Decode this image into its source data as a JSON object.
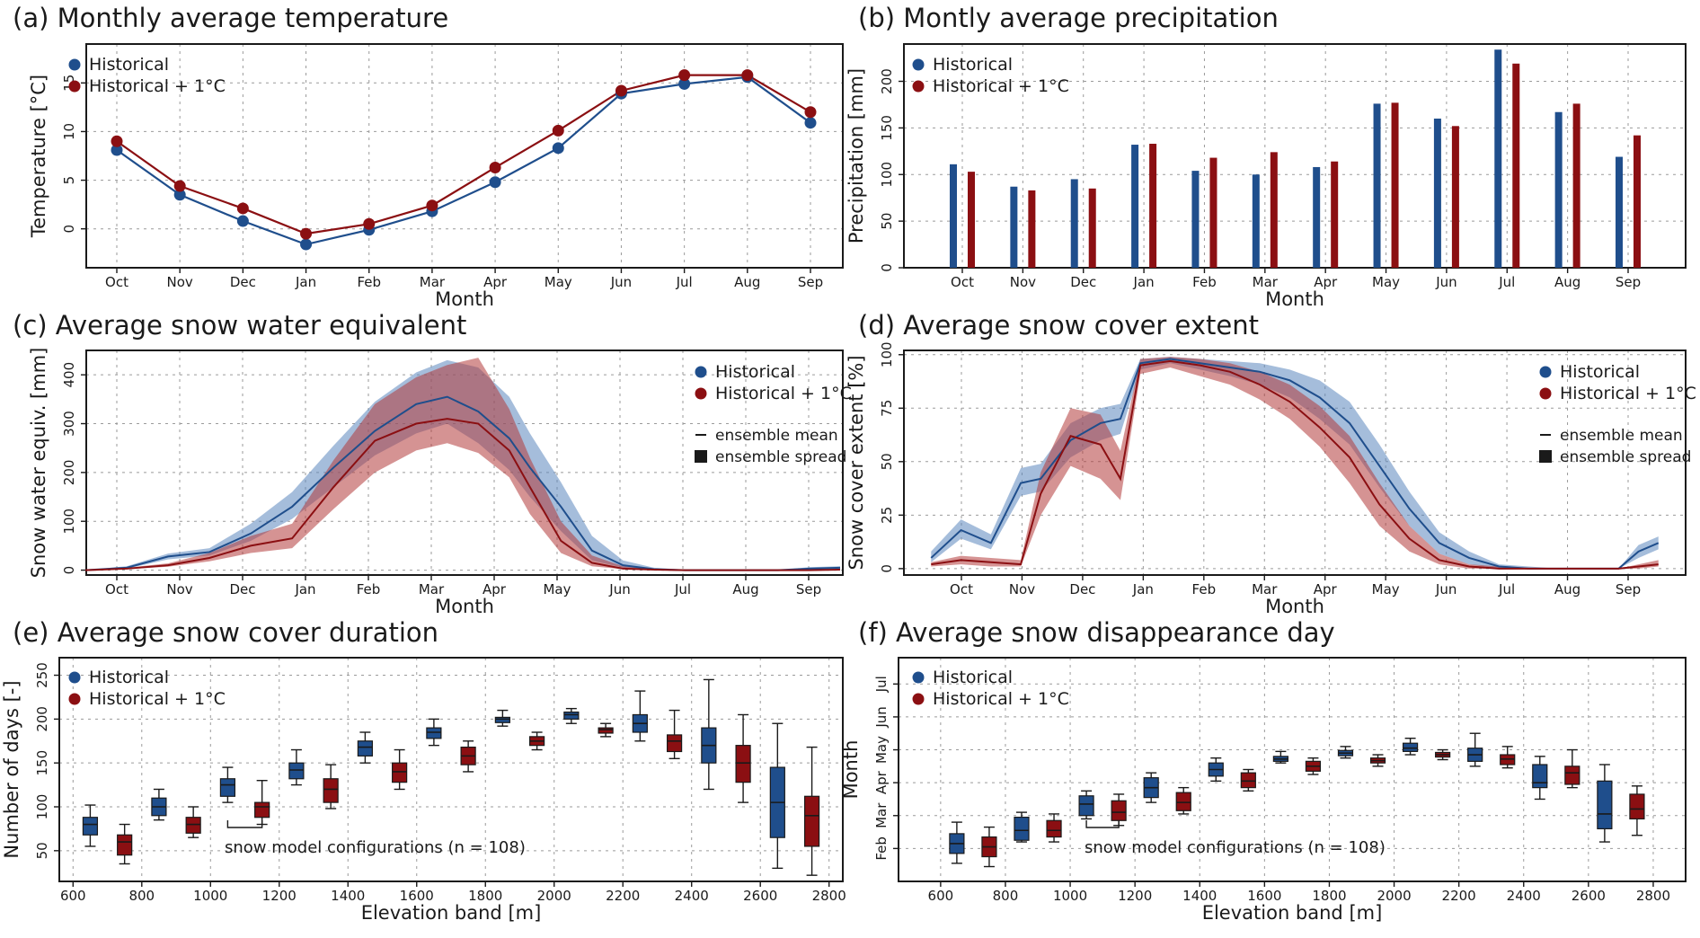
{
  "colors": {
    "historical": "#1f4e8c",
    "warm": "#8b0f12"
  },
  "chart_data": [
    {
      "type": "line",
      "title": "(a) Monthly average temperature",
      "xlabel": "Month",
      "ylabel": "Temperature [°C]",
      "categories": [
        "Oct",
        "Nov",
        "Dec",
        "Jan",
        "Feb",
        "Mar",
        "Apr",
        "May",
        "Jun",
        "Jul",
        "Aug",
        "Sep"
      ],
      "ylim": [
        -4,
        19
      ],
      "yticks": [
        "0",
        "5",
        "10",
        "15"
      ],
      "legend": [
        "Historical",
        "Historical + 1°C"
      ],
      "series": [
        {
          "name": "Historical",
          "values": [
            8.1,
            3.5,
            0.8,
            -1.6,
            -0.1,
            1.8,
            4.8,
            8.3,
            13.9,
            14.9,
            15.6,
            10.9
          ]
        },
        {
          "name": "Historical + 1°C",
          "values": [
            9.0,
            4.4,
            2.1,
            -0.5,
            0.5,
            2.4,
            6.3,
            10.1,
            14.2,
            15.8,
            15.8,
            12.0
          ]
        }
      ]
    },
    {
      "type": "bar",
      "title": "(b) Montly average precipitation",
      "xlabel": "Month",
      "ylabel": "Precipitation [mm]",
      "categories": [
        "Oct",
        "Nov",
        "Dec",
        "Jan",
        "Feb",
        "Mar",
        "Apr",
        "May",
        "Jun",
        "Jul",
        "Aug",
        "Sep"
      ],
      "ylim": [
        0,
        240
      ],
      "yticks": [
        "0",
        "50",
        "100",
        "150",
        "200"
      ],
      "legend": [
        "Historical",
        "Historical + 1°C"
      ],
      "series": [
        {
          "name": "Historical",
          "values": [
            111,
            87,
            95,
            132,
            104,
            100,
            108,
            176,
            160,
            234,
            167,
            119
          ]
        },
        {
          "name": "Historical + 1°C",
          "values": [
            103,
            83,
            85,
            133,
            118,
            124,
            114,
            177,
            152,
            219,
            176,
            142
          ]
        }
      ]
    },
    {
      "type": "area",
      "title": "(c) Average snow water equivalent",
      "xlabel": "Month",
      "ylabel": "Snow water equiv. [mm]",
      "xticks": [
        "Oct",
        "Nov",
        "Dec",
        "Jan",
        "Feb",
        "Mar",
        "Apr",
        "May",
        "Jun",
        "Jul",
        "Aug",
        "Sep"
      ],
      "ylim": [
        -10,
        450
      ],
      "yticks": [
        "0",
        "100",
        "200",
        "300",
        "400"
      ],
      "legend": [
        "Historical",
        "Historical + 1°C",
        "ensemble mean",
        "ensemble spread"
      ],
      "series": [
        {
          "name": "Historical",
          "day": [
            0,
            20,
            40,
            60,
            80,
            100,
            120,
            140,
            160,
            175,
            190,
            205,
            215,
            230,
            245,
            260,
            275,
            290,
            305,
            320,
            335,
            350,
            365
          ],
          "mean": [
            0,
            5,
            28,
            37,
            75,
            130,
            210,
            285,
            340,
            355,
            325,
            270,
            210,
            130,
            40,
            10,
            2,
            0,
            0,
            0,
            0,
            3,
            5
          ],
          "low": [
            0,
            3,
            22,
            30,
            60,
            105,
            170,
            235,
            280,
            300,
            260,
            205,
            150,
            80,
            20,
            5,
            1,
            0,
            0,
            0,
            0,
            1,
            2
          ],
          "high": [
            0,
            8,
            34,
            45,
            95,
            160,
            255,
            345,
            405,
            430,
            415,
            355,
            280,
            180,
            70,
            20,
            5,
            1,
            0,
            0,
            0,
            6,
            8
          ]
        },
        {
          "name": "Historical + 1°C",
          "day": [
            0,
            20,
            40,
            60,
            80,
            100,
            120,
            140,
            160,
            175,
            190,
            205,
            215,
            230,
            245,
            260,
            275,
            290,
            305,
            320,
            335,
            350,
            365
          ],
          "mean": [
            0,
            3,
            10,
            25,
            50,
            65,
            170,
            265,
            300,
            310,
            300,
            245,
            170,
            60,
            15,
            3,
            1,
            0,
            0,
            0,
            0,
            0,
            1
          ],
          "low": [
            0,
            2,
            7,
            18,
            35,
            45,
            125,
            200,
            245,
            260,
            240,
            190,
            115,
            35,
            8,
            2,
            0,
            0,
            0,
            0,
            0,
            0,
            0
          ],
          "high": [
            0,
            5,
            14,
            35,
            70,
            95,
            225,
            340,
            395,
            420,
            435,
            330,
            230,
            100,
            30,
            8,
            2,
            0,
            0,
            0,
            0,
            1,
            2
          ]
        }
      ]
    },
    {
      "type": "area",
      "title": "(d) Average snow cover extent",
      "xlabel": "Month",
      "ylabel": "Snow cover extent [%]",
      "xticks": [
        "Oct",
        "Nov",
        "Dec",
        "Jan",
        "Feb",
        "Mar",
        "Apr",
        "May",
        "Jun",
        "Jul",
        "Aug",
        "Sep"
      ],
      "ylim": [
        -3,
        102
      ],
      "yticks": [
        "0",
        "25",
        "50",
        "75",
        "100"
      ],
      "legend": [
        "Historical",
        "Historical + 1°C",
        "ensemble mean",
        "ensemble spread"
      ],
      "series": [
        {
          "name": "Historical",
          "day": [
            0,
            15,
            30,
            45,
            55,
            70,
            85,
            95,
            105,
            120,
            135,
            150,
            165,
            180,
            195,
            210,
            225,
            240,
            255,
            270,
            285,
            300,
            315,
            330,
            345,
            355,
            365
          ],
          "mean": [
            5,
            18,
            12,
            40,
            42,
            60,
            68,
            70,
            96,
            98,
            96,
            94,
            92,
            88,
            80,
            68,
            48,
            28,
            12,
            5,
            1,
            0,
            0,
            0,
            0,
            8,
            12
          ],
          "low": [
            3,
            14,
            9,
            34,
            36,
            52,
            60,
            63,
            93,
            96,
            93,
            90,
            86,
            80,
            70,
            58,
            38,
            20,
            7,
            2,
            0,
            0,
            0,
            0,
            0,
            5,
            9
          ],
          "high": [
            8,
            23,
            16,
            47,
            49,
            68,
            75,
            77,
            98,
            99,
            98,
            97,
            96,
            93,
            88,
            78,
            58,
            36,
            17,
            8,
            2,
            1,
            0,
            0,
            0,
            11,
            15
          ]
        },
        {
          "name": "Historical + 1°C",
          "day": [
            0,
            15,
            30,
            45,
            55,
            70,
            85,
            95,
            105,
            120,
            135,
            150,
            165,
            180,
            195,
            210,
            225,
            240,
            255,
            270,
            285,
            300,
            315,
            330,
            345,
            355,
            365
          ],
          "mean": [
            2,
            4,
            3,
            2,
            35,
            62,
            58,
            42,
            95,
            97,
            95,
            92,
            86,
            78,
            66,
            52,
            30,
            14,
            4,
            1,
            0,
            0,
            0,
            0,
            0,
            1,
            2
          ],
          "low": [
            1,
            2,
            1,
            1,
            25,
            48,
            42,
            32,
            91,
            94,
            90,
            86,
            79,
            70,
            57,
            40,
            20,
            8,
            2,
            0,
            0,
            0,
            0,
            0,
            0,
            0,
            1
          ],
          "high": [
            3,
            6,
            5,
            4,
            45,
            75,
            72,
            55,
            98,
            99,
            98,
            96,
            92,
            86,
            76,
            62,
            40,
            20,
            7,
            2,
            1,
            0,
            0,
            0,
            0,
            2,
            4
          ]
        }
      ]
    },
    {
      "type": "box",
      "title": "(e) Average snow cover duration",
      "xlabel": "Elevation band [m]",
      "ylabel": "Number of days [-]",
      "xlim": [
        560,
        2840
      ],
      "xticks": [
        "600",
        "800",
        "1000",
        "1200",
        "1400",
        "1600",
        "1800",
        "2000",
        "2200",
        "2400",
        "2600",
        "2800"
      ],
      "ylim": [
        15,
        270
      ],
      "yticks": [
        "50",
        "100",
        "150",
        "200",
        "250"
      ],
      "legend": [
        "Historical",
        "Historical + 1°C"
      ],
      "annotation": "snow model configurations (n = 108)",
      "series": [
        {
          "name": "Historical",
          "x": [
            650,
            850,
            1050,
            1250,
            1450,
            1650,
            1850,
            2050,
            2250,
            2450,
            2650
          ],
          "stats": [
            [
              55,
              68,
              80,
              88,
              102
            ],
            [
              85,
              90,
              100,
              110,
              120
            ],
            [
              105,
              112,
              125,
              132,
              145
            ],
            [
              125,
              132,
              142,
              150,
              165
            ],
            [
              150,
              158,
              168,
              175,
              185
            ],
            [
              170,
              178,
              185,
              190,
              200
            ],
            [
              192,
              196,
              200,
              202,
              210
            ],
            [
              195,
              200,
              205,
              208,
              212
            ],
            [
              175,
              185,
              195,
              205,
              232
            ],
            [
              120,
              150,
              170,
              190,
              245
            ],
            [
              30,
              65,
              105,
              145,
              195
            ]
          ]
        },
        {
          "name": "Historical + 1°C",
          "x": [
            750,
            950,
            1150,
            1350,
            1550,
            1750,
            1950,
            2150,
            2350,
            2550,
            2750
          ],
          "stats": [
            [
              35,
              45,
              60,
              68,
              80
            ],
            [
              65,
              70,
              80,
              88,
              100
            ],
            [
              80,
              88,
              100,
              105,
              130
            ],
            [
              98,
              105,
              120,
              132,
              148
            ],
            [
              120,
              128,
              140,
              150,
              165
            ],
            [
              140,
              148,
              158,
              168,
              175
            ],
            [
              165,
              170,
              175,
              180,
              185
            ],
            [
              180,
              184,
              188,
              190,
              195
            ],
            [
              155,
              163,
              175,
              182,
              210
            ],
            [
              105,
              128,
              150,
              170,
              205
            ],
            [
              22,
              55,
              90,
              112,
              168
            ]
          ]
        }
      ]
    },
    {
      "type": "box",
      "title": "(f) Average snow disappearance day",
      "xlabel": "Elevation band [m]",
      "ylabel": "Month",
      "xlim": [
        470,
        2900
      ],
      "xticks": [
        "600",
        "800",
        "1000",
        "1200",
        "1400",
        "1600",
        "1800",
        "2000",
        "2200",
        "2400",
        "2600",
        "2800"
      ],
      "ylim": [
        0,
        6.8
      ],
      "yticks": [
        "Feb",
        "Mar",
        "Apr",
        "May",
        "Jun",
        "Jul"
      ],
      "legend": [
        "Historical",
        "Historical + 1°C"
      ],
      "annotation": "snow model configurations (n = 108)",
      "series": [
        {
          "name": "Historical",
          "x": [
            650,
            850,
            1050,
            1250,
            1450,
            1650,
            1850,
            2050,
            2250,
            2450,
            2650
          ],
          "stats": [
            [
              0.55,
              0.85,
              1.15,
              1.45,
              1.8
            ],
            [
              1.2,
              1.25,
              1.55,
              1.95,
              2.1
            ],
            [
              1.9,
              2.0,
              2.35,
              2.6,
              2.75
            ],
            [
              2.4,
              2.55,
              2.85,
              3.15,
              3.3
            ],
            [
              3.05,
              3.2,
              3.4,
              3.6,
              3.75
            ],
            [
              3.6,
              3.65,
              3.72,
              3.8,
              3.95
            ],
            [
              3.75,
              3.82,
              3.9,
              3.98,
              4.1
            ],
            [
              3.85,
              3.95,
              4.05,
              4.2,
              4.35
            ],
            [
              3.5,
              3.65,
              3.85,
              4.05,
              4.5
            ],
            [
              2.5,
              2.85,
              3.0,
              3.55,
              3.8
            ],
            [
              1.2,
              1.6,
              2.05,
              3.05,
              3.55
            ]
          ]
        },
        {
          "name": "Historical + 1°C",
          "x": [
            750,
            950,
            1150,
            1350,
            1550,
            1750,
            1950,
            2150,
            2350,
            2550,
            2750
          ],
          "stats": [
            [
              0.45,
              0.75,
              1.05,
              1.35,
              1.65
            ],
            [
              1.2,
              1.35,
              1.55,
              1.85,
              2.05
            ],
            [
              1.7,
              1.85,
              2.1,
              2.45,
              2.65
            ],
            [
              2.05,
              2.15,
              2.4,
              2.7,
              2.85
            ],
            [
              2.75,
              2.85,
              3.05,
              3.3,
              3.4
            ],
            [
              3.25,
              3.35,
              3.5,
              3.65,
              3.75
            ],
            [
              3.5,
              3.6,
              3.67,
              3.75,
              3.85
            ],
            [
              3.7,
              3.78,
              3.85,
              3.92,
              4.0
            ],
            [
              3.45,
              3.55,
              3.72,
              3.85,
              4.1
            ],
            [
              2.85,
              2.95,
              3.3,
              3.5,
              4.0
            ],
            [
              1.4,
              1.9,
              2.2,
              2.65,
              2.9
            ]
          ]
        }
      ]
    }
  ]
}
